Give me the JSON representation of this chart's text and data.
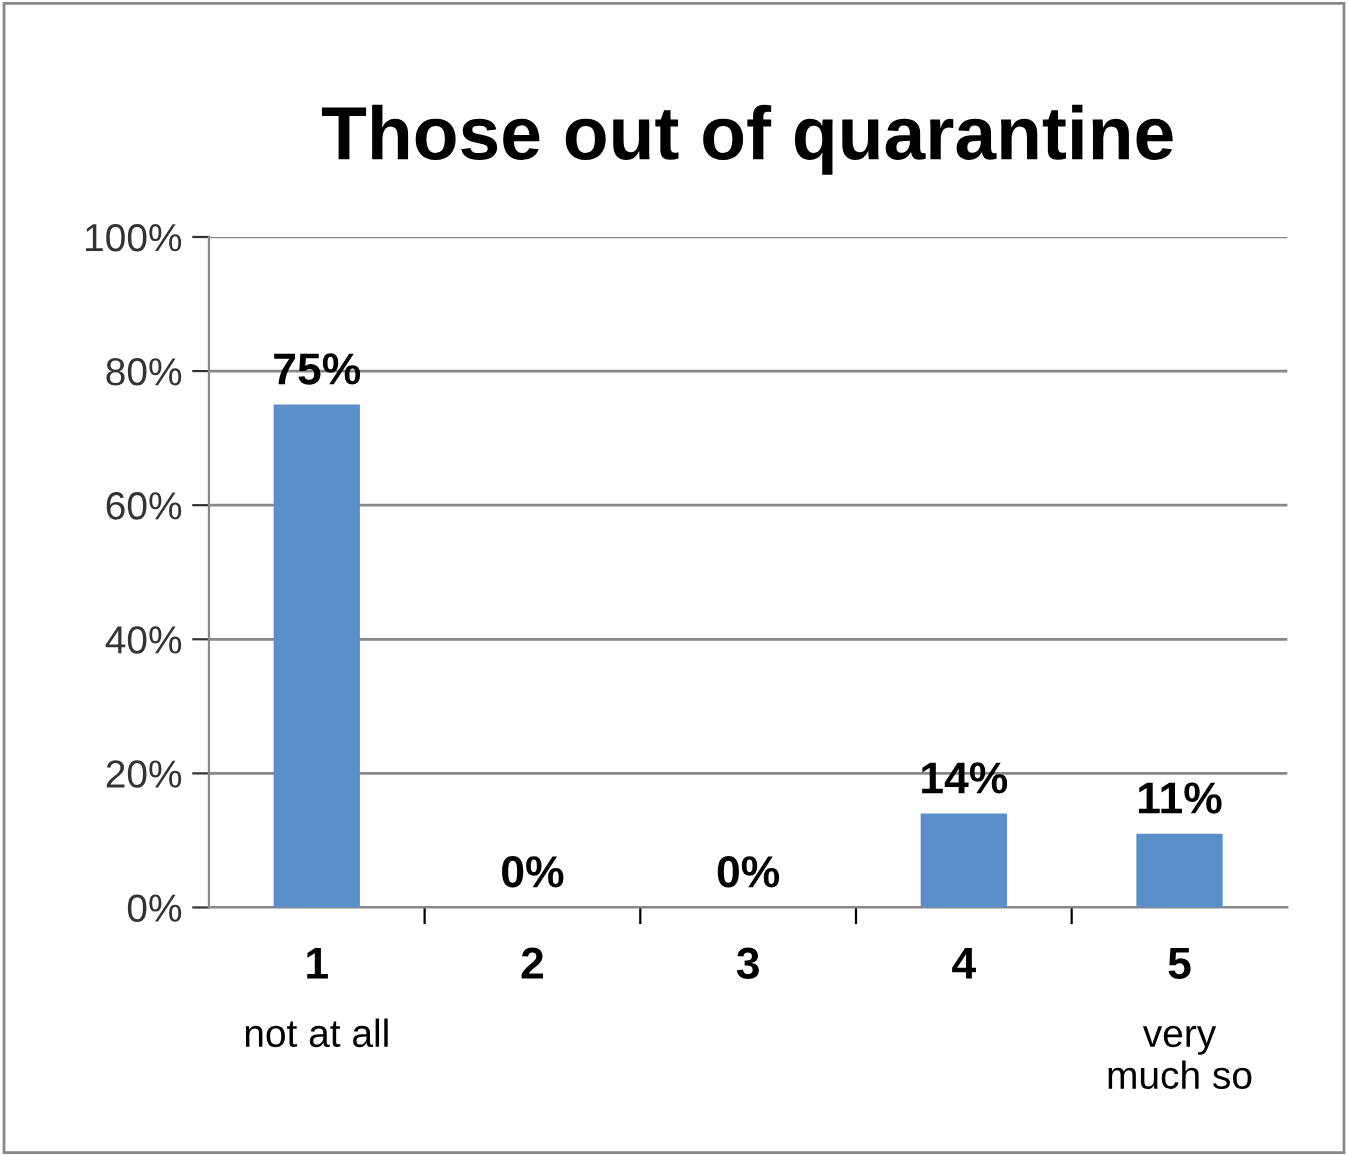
{
  "chart_data": {
    "type": "bar",
    "title": "Those out of quarantine",
    "categories": [
      "1\nnot at all",
      "2",
      "3",
      "4",
      "5\nvery\nmuch so"
    ],
    "values": [
      75,
      0,
      0,
      14,
      11
    ],
    "value_labels": [
      "75%",
      "0%",
      "0%",
      "14%",
      "11%"
    ],
    "color": "#5b8fc9",
    "ylim": [
      0,
      100
    ],
    "yticks": [
      {
        "value": 0,
        "label": "0%"
      },
      {
        "value": 20,
        "label": "20%"
      },
      {
        "value": 40,
        "label": "40%"
      },
      {
        "value": 60,
        "label": "60%"
      },
      {
        "value": 80,
        "label": "80%"
      },
      {
        "value": 100,
        "label": "100%"
      }
    ],
    "grid": "y",
    "legend": false
  }
}
